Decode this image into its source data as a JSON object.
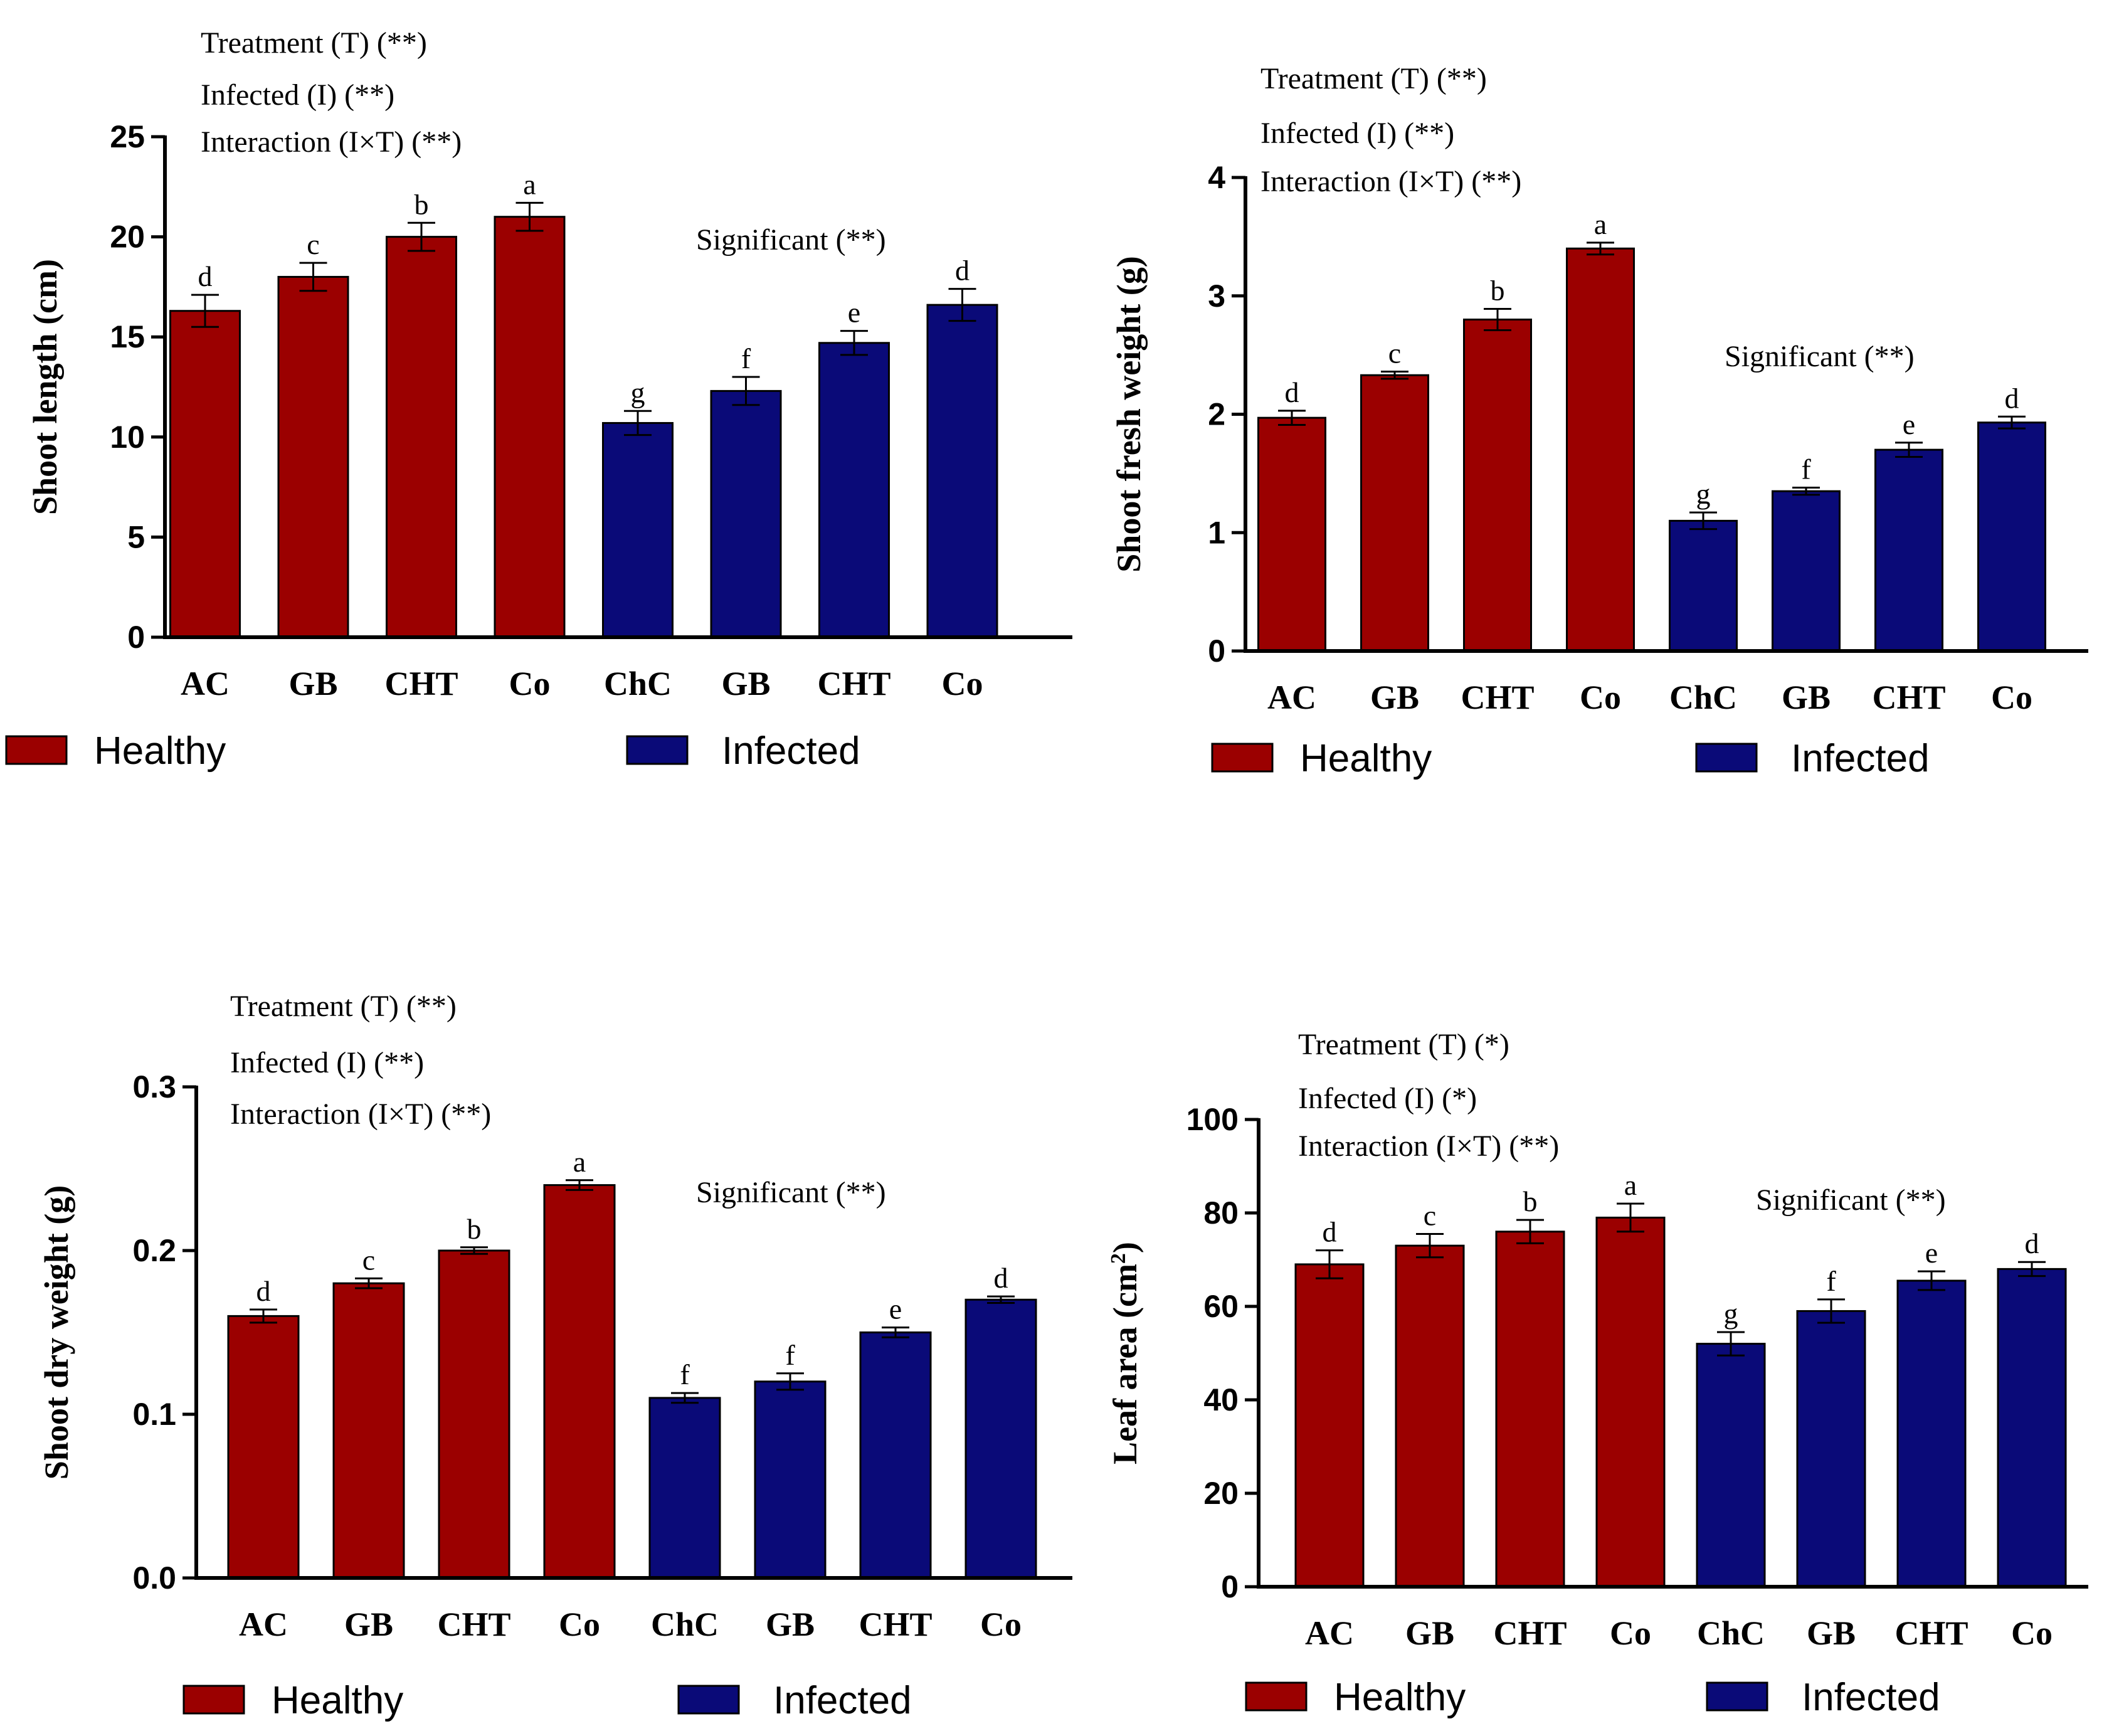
{
  "figure": {
    "legend": {
      "healthy": "Healthy",
      "infected": "Infected"
    },
    "colors": {
      "healthy": "#9b0000",
      "infected": "#0a0a78",
      "axis": "#000000"
    }
  },
  "chart_data": [
    {
      "type": "bar",
      "ylabel": "Shoot length (cm)",
      "ylim": [
        0,
        25
      ],
      "yticks": [
        "0",
        "5",
        "10",
        "15",
        "20",
        "25"
      ],
      "ytick_values": [
        0,
        5,
        10,
        15,
        20,
        25
      ],
      "categories": [
        "AC",
        "GB",
        "CHT",
        "Co",
        "ChC",
        "GB",
        "CHT",
        "Co"
      ],
      "groups": [
        "healthy",
        "healthy",
        "healthy",
        "healthy",
        "infected",
        "infected",
        "infected",
        "infected"
      ],
      "values": [
        16.3,
        18.0,
        20.0,
        21.0,
        10.7,
        12.3,
        14.7,
        16.6
      ],
      "errors": [
        0.8,
        0.7,
        0.7,
        0.7,
        0.6,
        0.7,
        0.6,
        0.8
      ],
      "letters": [
        "d",
        "c",
        "b",
        "a",
        "g",
        "f",
        "e",
        "d"
      ],
      "stats": [
        "Treatment (T) (**)",
        "Infected (I) (**)",
        "Interaction (I×T) (**)"
      ],
      "significance": "Significant (**)"
    },
    {
      "type": "bar",
      "ylabel": "Shoot fresh weight (g)",
      "ylim": [
        0,
        4
      ],
      "yticks": [
        "0",
        "1",
        "2",
        "3",
        "4"
      ],
      "ytick_values": [
        0,
        1,
        2,
        3,
        4
      ],
      "categories": [
        "AC",
        "GB",
        "CHT",
        "Co",
        "ChC",
        "GB",
        "CHT",
        "Co"
      ],
      "groups": [
        "healthy",
        "healthy",
        "healthy",
        "healthy",
        "infected",
        "infected",
        "infected",
        "infected"
      ],
      "values": [
        1.97,
        2.33,
        2.8,
        3.4,
        1.1,
        1.35,
        1.7,
        1.93
      ],
      "errors": [
        0.06,
        0.03,
        0.09,
        0.05,
        0.07,
        0.03,
        0.06,
        0.05
      ],
      "letters": [
        "d",
        "c",
        "b",
        "a",
        "g",
        "f",
        "e",
        "d"
      ],
      "stats": [
        "Treatment (T) (**)",
        "Infected (I) (**)",
        "Interaction (I×T) (**)"
      ],
      "significance": "Significant (**)"
    },
    {
      "type": "bar",
      "ylabel": "Shoot dry weight (g)",
      "ylim": [
        0,
        0.3
      ],
      "yticks": [
        "0.0",
        "0.1",
        "0.2",
        "0.3"
      ],
      "ytick_values": [
        0,
        0.1,
        0.2,
        0.3
      ],
      "categories": [
        "AC",
        "GB",
        "CHT",
        "Co",
        "ChC",
        "GB",
        "CHT",
        "Co"
      ],
      "groups": [
        "healthy",
        "healthy",
        "healthy",
        "healthy",
        "infected",
        "infected",
        "infected",
        "infected"
      ],
      "values": [
        0.16,
        0.18,
        0.2,
        0.24,
        0.11,
        0.12,
        0.15,
        0.17
      ],
      "errors": [
        0.004,
        0.003,
        0.002,
        0.003,
        0.003,
        0.005,
        0.003,
        0.002
      ],
      "letters": [
        "d",
        "c",
        "b",
        "a",
        "f",
        "f",
        "e",
        "d"
      ],
      "stats": [
        "Treatment (T) (**)",
        "Infected (I) (**)",
        "Interaction (I×T) (**)"
      ],
      "significance": "Significant (**)"
    },
    {
      "type": "bar",
      "ylabel": "Leaf area (cm",
      "ylabel_sup": "2",
      "ylabel_end": ")",
      "ylim": [
        0,
        100
      ],
      "yticks": [
        "0",
        "20",
        "40",
        "60",
        "80",
        "100"
      ],
      "ytick_values": [
        0,
        20,
        40,
        60,
        80,
        100
      ],
      "categories": [
        "AC",
        "GB",
        "CHT",
        "Co",
        "ChC",
        "GB",
        "CHT",
        "Co"
      ],
      "groups": [
        "healthy",
        "healthy",
        "healthy",
        "healthy",
        "infected",
        "infected",
        "infected",
        "infected"
      ],
      "values": [
        69,
        73,
        76,
        79,
        52,
        59,
        65.5,
        68
      ],
      "errors": [
        3,
        2.5,
        2.5,
        3,
        2.5,
        2.5,
        2,
        1.5
      ],
      "letters": [
        "d",
        "c",
        "b",
        "a",
        "g",
        "f",
        "e",
        "d"
      ],
      "stats": [
        "Treatment (T) (*)",
        "Infected (I) (*)",
        "Interaction (I×T) (**)"
      ],
      "significance": "Significant (**)"
    }
  ]
}
